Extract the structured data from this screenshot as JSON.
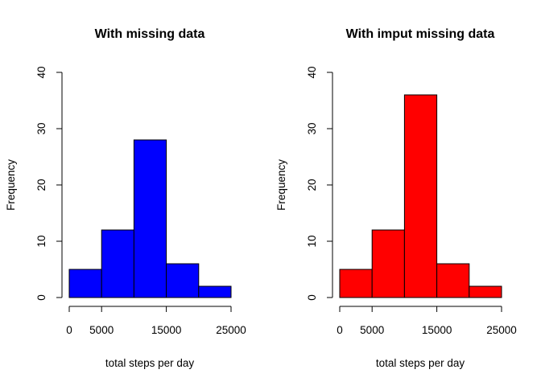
{
  "chart_data": [
    {
      "type": "bar",
      "title": "With missing data",
      "xlabel": "total steps per day",
      "ylabel": "Frequency",
      "bin_edges": [
        0,
        5000,
        10000,
        15000,
        20000,
        25000
      ],
      "values": [
        5,
        12,
        28,
        6,
        2
      ],
      "bar_color": "#0000ff",
      "xticks": [
        0,
        5000,
        15000,
        25000
      ],
      "xtick_labels": [
        "0",
        "5000",
        "15000",
        "25000"
      ],
      "xlim": [
        0,
        25000
      ],
      "yticks": [
        0,
        10,
        20,
        30,
        40
      ],
      "ytick_labels": [
        "0",
        "10",
        "20",
        "30",
        "40"
      ],
      "ylim": [
        0,
        40
      ],
      "grid": false
    },
    {
      "type": "bar",
      "title": "With imput missing data",
      "xlabel": "total steps per day",
      "ylabel": "Frequency",
      "bin_edges": [
        0,
        5000,
        10000,
        15000,
        20000,
        25000
      ],
      "values": [
        5,
        12,
        36,
        6,
        2
      ],
      "bar_color": "#ff0000",
      "xticks": [
        0,
        5000,
        15000,
        25000
      ],
      "xtick_labels": [
        "0",
        "5000",
        "15000",
        "25000"
      ],
      "xlim": [
        0,
        25000
      ],
      "yticks": [
        0,
        10,
        20,
        30,
        40
      ],
      "ytick_labels": [
        "0",
        "10",
        "20",
        "30",
        "40"
      ],
      "ylim": [
        0,
        40
      ],
      "grid": false
    }
  ]
}
